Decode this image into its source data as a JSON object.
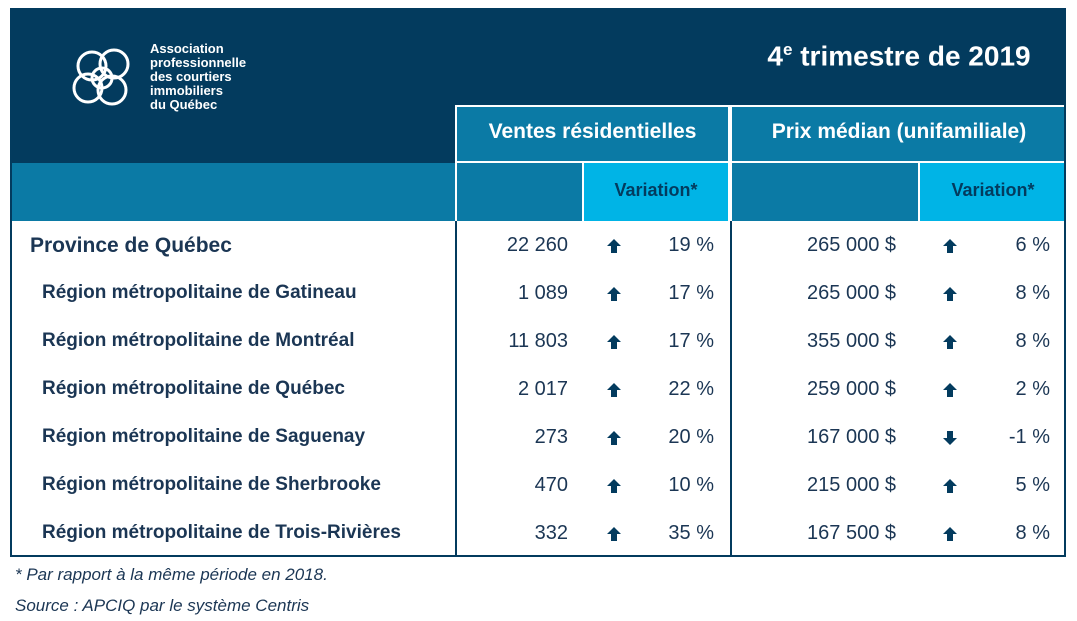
{
  "logo": {
    "lines": [
      "Association",
      "professionnelle",
      "des courtiers",
      "immobiliers",
      "du Québec"
    ]
  },
  "header": {
    "title": {
      "number": "4",
      "sup": "e",
      "rest": "trimestre de 2019"
    },
    "sales": "Ventes résidentielles",
    "price": "Prix médian (unifamiliale)",
    "variation_sales": "Variation*",
    "variation_price": "Variation*"
  },
  "table": {
    "rows": [
      {
        "name": "Province de Québec",
        "level": "province",
        "sales": "22 260",
        "sales_trend": "up",
        "sales_var": "19 %",
        "price": "265 000 $",
        "price_trend": "up",
        "price_var": "6 %"
      },
      {
        "name": "Région métropolitaine de Gatineau",
        "level": "region",
        "sales": "1 089",
        "sales_trend": "up",
        "sales_var": "17 %",
        "price": "265 000 $",
        "price_trend": "up",
        "price_var": "8 %"
      },
      {
        "name": "Région métropolitaine de Montréal",
        "level": "region",
        "sales": "11 803",
        "sales_trend": "up",
        "sales_var": "17 %",
        "price": "355 000 $",
        "price_trend": "up",
        "price_var": "8 %"
      },
      {
        "name": "Région métropolitaine de Québec",
        "level": "region",
        "sales": "2 017",
        "sales_trend": "up",
        "sales_var": "22 %",
        "price": "259 000 $",
        "price_trend": "up",
        "price_var": "2 %"
      },
      {
        "name": "Région métropolitaine de Saguenay",
        "level": "region",
        "sales": "273",
        "sales_trend": "up",
        "sales_var": "20 %",
        "price": "167 000 $",
        "price_trend": "down",
        "price_var": "-1 %"
      },
      {
        "name": "Région métropolitaine de Sherbrooke",
        "level": "region",
        "sales": "470",
        "sales_trend": "up",
        "sales_var": "10 %",
        "price": "215 000 $",
        "price_trend": "up",
        "price_var": "5 %"
      },
      {
        "name": "Région métropolitaine de Trois-Rivières",
        "level": "region",
        "sales": "332",
        "sales_trend": "up",
        "sales_var": "35 %",
        "price": "167 500 $",
        "price_trend": "up",
        "price_var": "8 %"
      }
    ]
  },
  "footnotes": [
    "* Par rapport à la même période en 2018.",
    "Source : APCIQ par le système Centris"
  ]
}
